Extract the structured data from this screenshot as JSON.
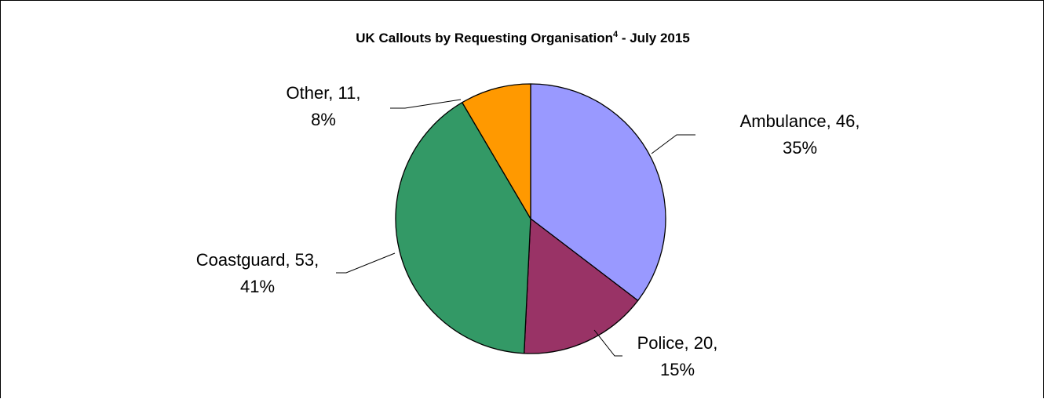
{
  "chart_data": {
    "type": "pie",
    "title": "UK Callouts by Requesting Organisation",
    "title_superscript": "4",
    "title_suffix": " - July 2015",
    "slices": [
      {
        "label": "Ambulance",
        "value": 46,
        "percent": "35%",
        "color": "#9999ff"
      },
      {
        "label": "Police",
        "value": 20,
        "percent": "15%",
        "color": "#993366"
      },
      {
        "label": "Coastguard",
        "value": 53,
        "percent": "41%",
        "color": "#339966"
      },
      {
        "label": "Other",
        "value": 11,
        "percent": "8%",
        "color": "#ff9900"
      }
    ],
    "start_angle": "12 o'clock",
    "direction": "clockwise",
    "legend": "none",
    "data_labels": "outside with leader lines"
  }
}
